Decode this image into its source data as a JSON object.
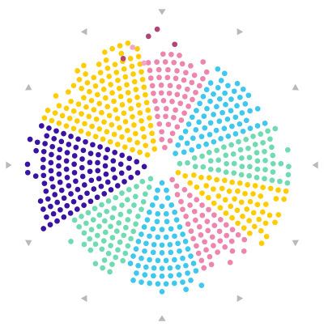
{
  "chart_data": {
    "type": "radial-dot",
    "title": "",
    "description_visible_text": "",
    "center": "hollow",
    "axis_markers": "outer-ring-triangles",
    "palette": {
      "indigo": "#3a12a4",
      "yellow": "#ffcc00",
      "pink": "#ee85ad",
      "cyan": "#3fc7ee",
      "mint": "#70dbb2",
      "crimson": "#b24473",
      "light_pink": "#f4a6c8"
    },
    "sectors": [
      {
        "color": "pink",
        "start_deg": -100,
        "end_deg": -62,
        "reach": 0.8
      },
      {
        "color": "cyan",
        "start_deg": -62,
        "end_deg": -20,
        "reach": 0.82
      },
      {
        "color": "mint",
        "start_deg": -20,
        "end_deg": 10,
        "reach": 0.92
      },
      {
        "color": "yellow",
        "start_deg": 10,
        "end_deg": 40,
        "reach": 0.9
      },
      {
        "color": "pink",
        "start_deg": 40,
        "end_deg": 70,
        "reach": 0.86
      },
      {
        "color": "cyan",
        "start_deg": 70,
        "end_deg": 110,
        "reach": 0.92
      },
      {
        "color": "mint",
        "start_deg": 110,
        "end_deg": 150,
        "reach": 0.86
      },
      {
        "color": "indigo",
        "start_deg": 150,
        "end_deg": 200,
        "reach": 0.95
      },
      {
        "color": "yellow",
        "start_deg": 200,
        "end_deg": 260,
        "reach": 0.9
      }
    ]
  }
}
